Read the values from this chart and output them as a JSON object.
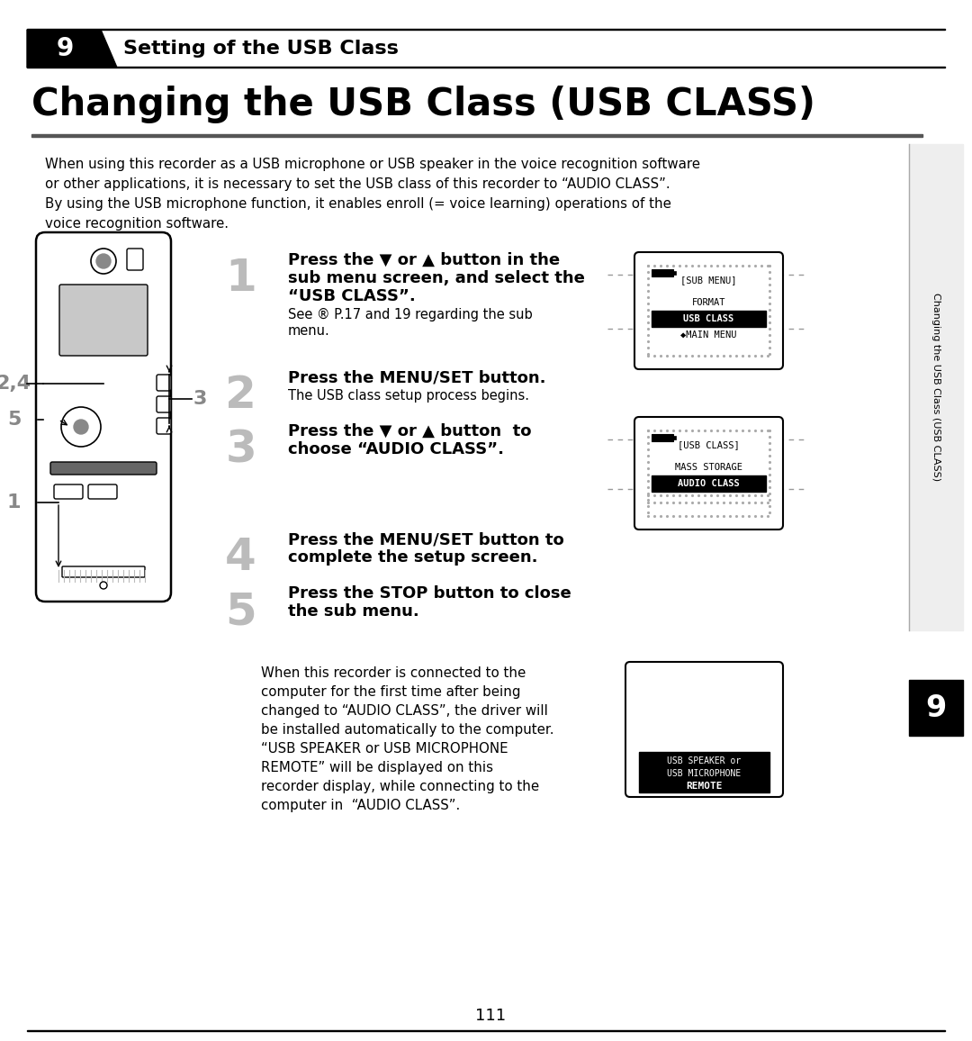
{
  "page_bg": "#ffffff",
  "chapter_num": "9",
  "chapter_title": "Setting of the USB Class",
  "main_title": "Changing the USB Class (USB CLASS)",
  "intro_text": "When using this recorder as a USB microphone or USB speaker in the voice recognition software\nor other applications, it is necessary to set the USB class of this recorder to “AUDIO CLASS”.\nBy using the USB microphone function, it enables enroll (= voice learning) operations of the\nvoice recognition software.",
  "step1_line1": "Press the ▼ or ▲ button in the",
  "step1_line2": "sub menu screen, and select the",
  "step1_line3": "“USB CLASS”.",
  "step1_sub": "See ® P.17 and 19 regarding the sub",
  "step1_sub2": "menu.",
  "step2_line1": "Press the MENU/SET button.",
  "step2_sub": "The USB class setup process begins.",
  "step3_line1": "Press the ▼ or ▲ button  to",
  "step3_line2": "choose “AUDIO CLASS”.",
  "step4_line1": "Press the MENU/SET button to",
  "step4_line2": "complete the setup screen.",
  "step5_line1": "Press the STOP button to close",
  "step5_line2": "the sub menu.",
  "bottom_line1": "When this recorder is connected to the",
  "bottom_line2": "computer for the first time after being",
  "bottom_line3": "changed to “AUDIO CLASS”, the driver will",
  "bottom_line4": "be installed automatically to the computer.",
  "bottom_line5": "“USB SPEAKER or USB MICROPHONE",
  "bottom_line6": "REMOTE” will be displayed on this",
  "bottom_line7": "recorder display, while connecting to the",
  "bottom_line8": "computer in  “AUDIO CLASS”.",
  "side_label": "Changing the USB Class (USB CLASS)",
  "page_num": "111",
  "screen1_title": "[SUB MENU]",
  "screen1_item1": "FORMAT",
  "screen1_item2": "USB CLASS",
  "screen1_item3": "◆MAIN MENU",
  "screen1_selected": 1,
  "screen2_title": "[USB CLASS]",
  "screen2_item1": "MASS STORAGE",
  "screen2_item2": "AUDIO CLASS",
  "screen2_selected": 1,
  "screen3_line1": "USB SPEAKER or",
  "screen3_line2": "USB MICROPHONE",
  "screen3_line3": "REMOTE"
}
